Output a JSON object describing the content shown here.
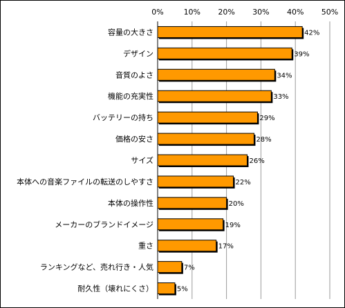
{
  "chart_data": {
    "type": "bar",
    "orientation": "horizontal",
    "categories": [
      "容量の大きさ",
      "デザイン",
      "音質のよさ",
      "機能の充実性",
      "バッテリーの持ち",
      "価格の安さ",
      "サイズ",
      "本体への音楽ファイルの転送のしやすさ",
      "本体の操作性",
      "メーカーのブランドイメージ",
      "重さ",
      "ランキングなど、売れ行き・人気",
      "耐久性（壊れにくさ）"
    ],
    "values": [
      42,
      39,
      34,
      33,
      29,
      28,
      26,
      22,
      20,
      19,
      17,
      7,
      5
    ],
    "data_labels": [
      "42%",
      "39%",
      "34%",
      "33%",
      "29%",
      "28%",
      "26%",
      "22%",
      "20%",
      "19%",
      "17%",
      "7%",
      "5%"
    ],
    "xlim": [
      0,
      50
    ],
    "x_ticks": [
      "0%",
      "10%",
      "20%",
      "30%",
      "40%",
      "50%"
    ],
    "x_tick_values": [
      0,
      10,
      20,
      30,
      40,
      50
    ],
    "x_axis_position": "top",
    "grid": true,
    "bar_color": "#FF9900",
    "bar_shadow_color": "#000000"
  }
}
